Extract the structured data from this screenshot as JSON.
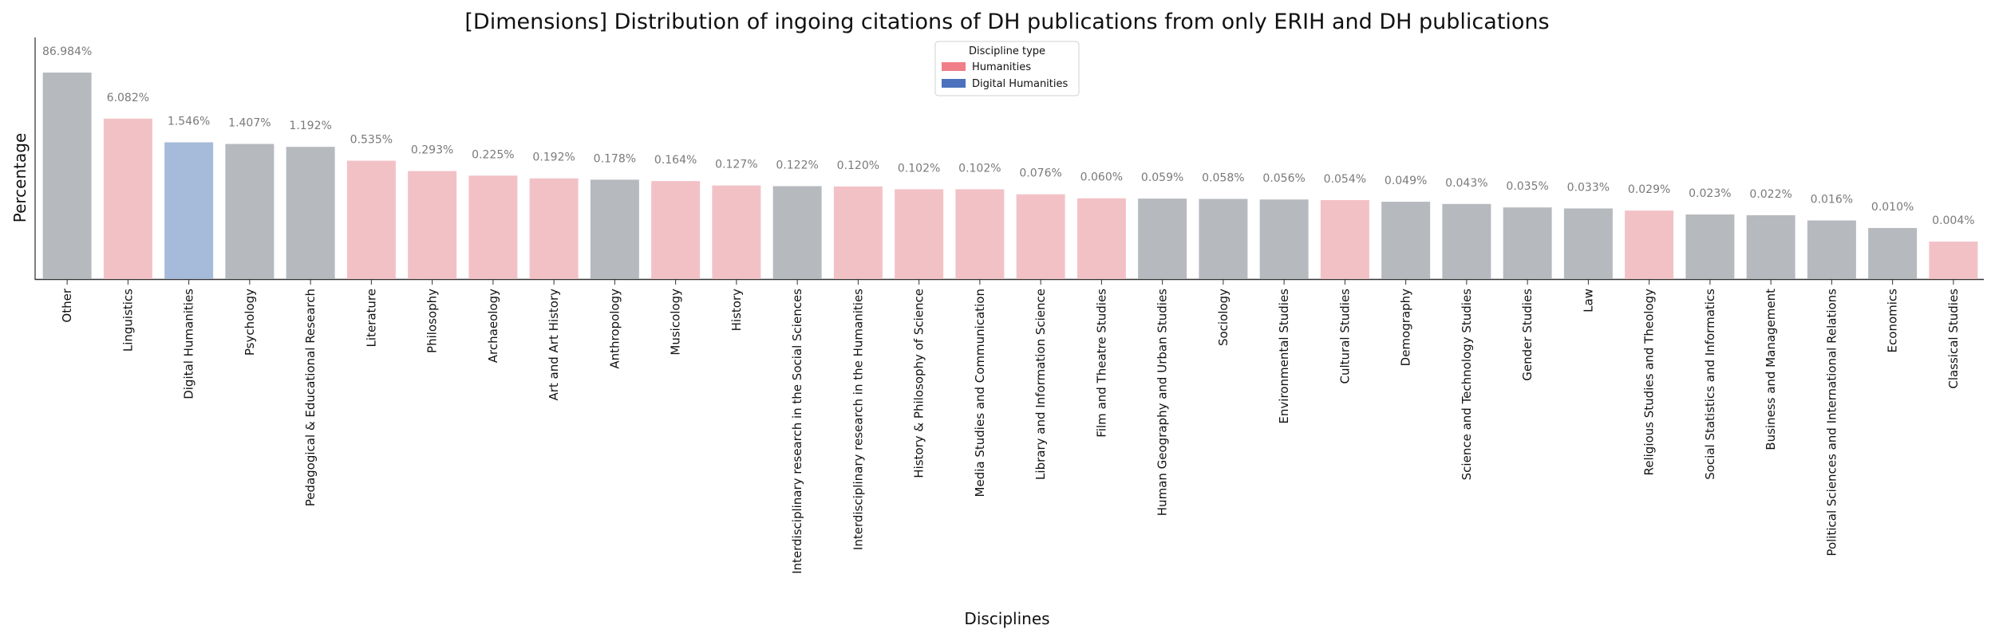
{
  "chart_data": {
    "type": "bar",
    "title": "[Dimensions] Distribution of ingoing citations of DH publications from only ERIH and DH publications",
    "xlabel": "Disciplines",
    "ylabel": "Percentage",
    "ylim": [
      0,
      100
    ],
    "grid": false,
    "legend": {
      "title": "Discipline type",
      "placement": "top-center",
      "entries": [
        {
          "name": "Humanities",
          "color": "#f07f89"
        },
        {
          "name": "Digital Humanities",
          "color": "#4d72bd"
        }
      ]
    },
    "type_colors": {
      "Humanities": "#f2c1c6",
      "Digital Humanities": "#a6bad9",
      "Other": "#b6babe"
    },
    "bars": [
      {
        "label": "Other",
        "value": 86.984,
        "value_label": "86.984%",
        "type": "Other"
      },
      {
        "label": "Linguistics",
        "value": 6.082,
        "value_label": "6.082%",
        "type": "Humanities"
      },
      {
        "label": "Digital Humanities",
        "value": 1.546,
        "value_label": "1.546%",
        "type": "Digital Humanities"
      },
      {
        "label": "Psychology",
        "value": 1.407,
        "value_label": "1.407%",
        "type": "Other"
      },
      {
        "label": "Pedagogical & Educational Research",
        "value": 1.192,
        "value_label": "1.192%",
        "type": "Other"
      },
      {
        "label": "Literature",
        "value": 0.535,
        "value_label": "0.535%",
        "type": "Humanities"
      },
      {
        "label": "Philosophy",
        "value": 0.293,
        "value_label": "0.293%",
        "type": "Humanities"
      },
      {
        "label": "Archaeology",
        "value": 0.225,
        "value_label": "0.225%",
        "type": "Humanities"
      },
      {
        "label": "Art and Art History",
        "value": 0.192,
        "value_label": "0.192%",
        "type": "Humanities"
      },
      {
        "label": "Anthropology",
        "value": 0.178,
        "value_label": "0.178%",
        "type": "Other"
      },
      {
        "label": "Musicology",
        "value": 0.164,
        "value_label": "0.164%",
        "type": "Humanities"
      },
      {
        "label": "History",
        "value": 0.127,
        "value_label": "0.127%",
        "type": "Humanities"
      },
      {
        "label": "Interdisciplinary research in the Social Sciences",
        "value": 0.122,
        "value_label": "0.122%",
        "type": "Other"
      },
      {
        "label": "Interdisciplinary research in the Humanities",
        "value": 0.12,
        "value_label": "0.120%",
        "type": "Humanities"
      },
      {
        "label": "History & Philosophy of Science",
        "value": 0.102,
        "value_label": "0.102%",
        "type": "Humanities"
      },
      {
        "label": "Media Studies and Communication",
        "value": 0.102,
        "value_label": "0.102%",
        "type": "Humanities"
      },
      {
        "label": "Library and Information Science",
        "value": 0.076,
        "value_label": "0.076%",
        "type": "Humanities"
      },
      {
        "label": "Film and Theatre Studies",
        "value": 0.06,
        "value_label": "0.060%",
        "type": "Humanities"
      },
      {
        "label": "Human Geography and Urban Studies",
        "value": 0.059,
        "value_label": "0.059%",
        "type": "Other"
      },
      {
        "label": "Sociology",
        "value": 0.058,
        "value_label": "0.058%",
        "type": "Other"
      },
      {
        "label": "Environmental Studies",
        "value": 0.056,
        "value_label": "0.056%",
        "type": "Other"
      },
      {
        "label": "Cultural Studies",
        "value": 0.054,
        "value_label": "0.054%",
        "type": "Humanities"
      },
      {
        "label": "Demography",
        "value": 0.049,
        "value_label": "0.049%",
        "type": "Other"
      },
      {
        "label": "Science and Technology Studies",
        "value": 0.043,
        "value_label": "0.043%",
        "type": "Other"
      },
      {
        "label": "Gender Studies",
        "value": 0.035,
        "value_label": "0.035%",
        "type": "Other"
      },
      {
        "label": "Law",
        "value": 0.033,
        "value_label": "0.033%",
        "type": "Other"
      },
      {
        "label": "Religious Studies and Theology",
        "value": 0.029,
        "value_label": "0.029%",
        "type": "Humanities"
      },
      {
        "label": "Social Statistics and Informatics",
        "value": 0.023,
        "value_label": "0.023%",
        "type": "Other"
      },
      {
        "label": "Business and Management",
        "value": 0.022,
        "value_label": "0.022%",
        "type": "Other"
      },
      {
        "label": "Political Sciences and International Relations",
        "value": 0.016,
        "value_label": "0.016%",
        "type": "Other"
      },
      {
        "label": "Economics",
        "value": 0.01,
        "value_label": "0.010%",
        "type": "Other"
      },
      {
        "label": "Classical Studies",
        "value": 0.004,
        "value_label": "0.004%",
        "type": "Humanities"
      }
    ]
  }
}
